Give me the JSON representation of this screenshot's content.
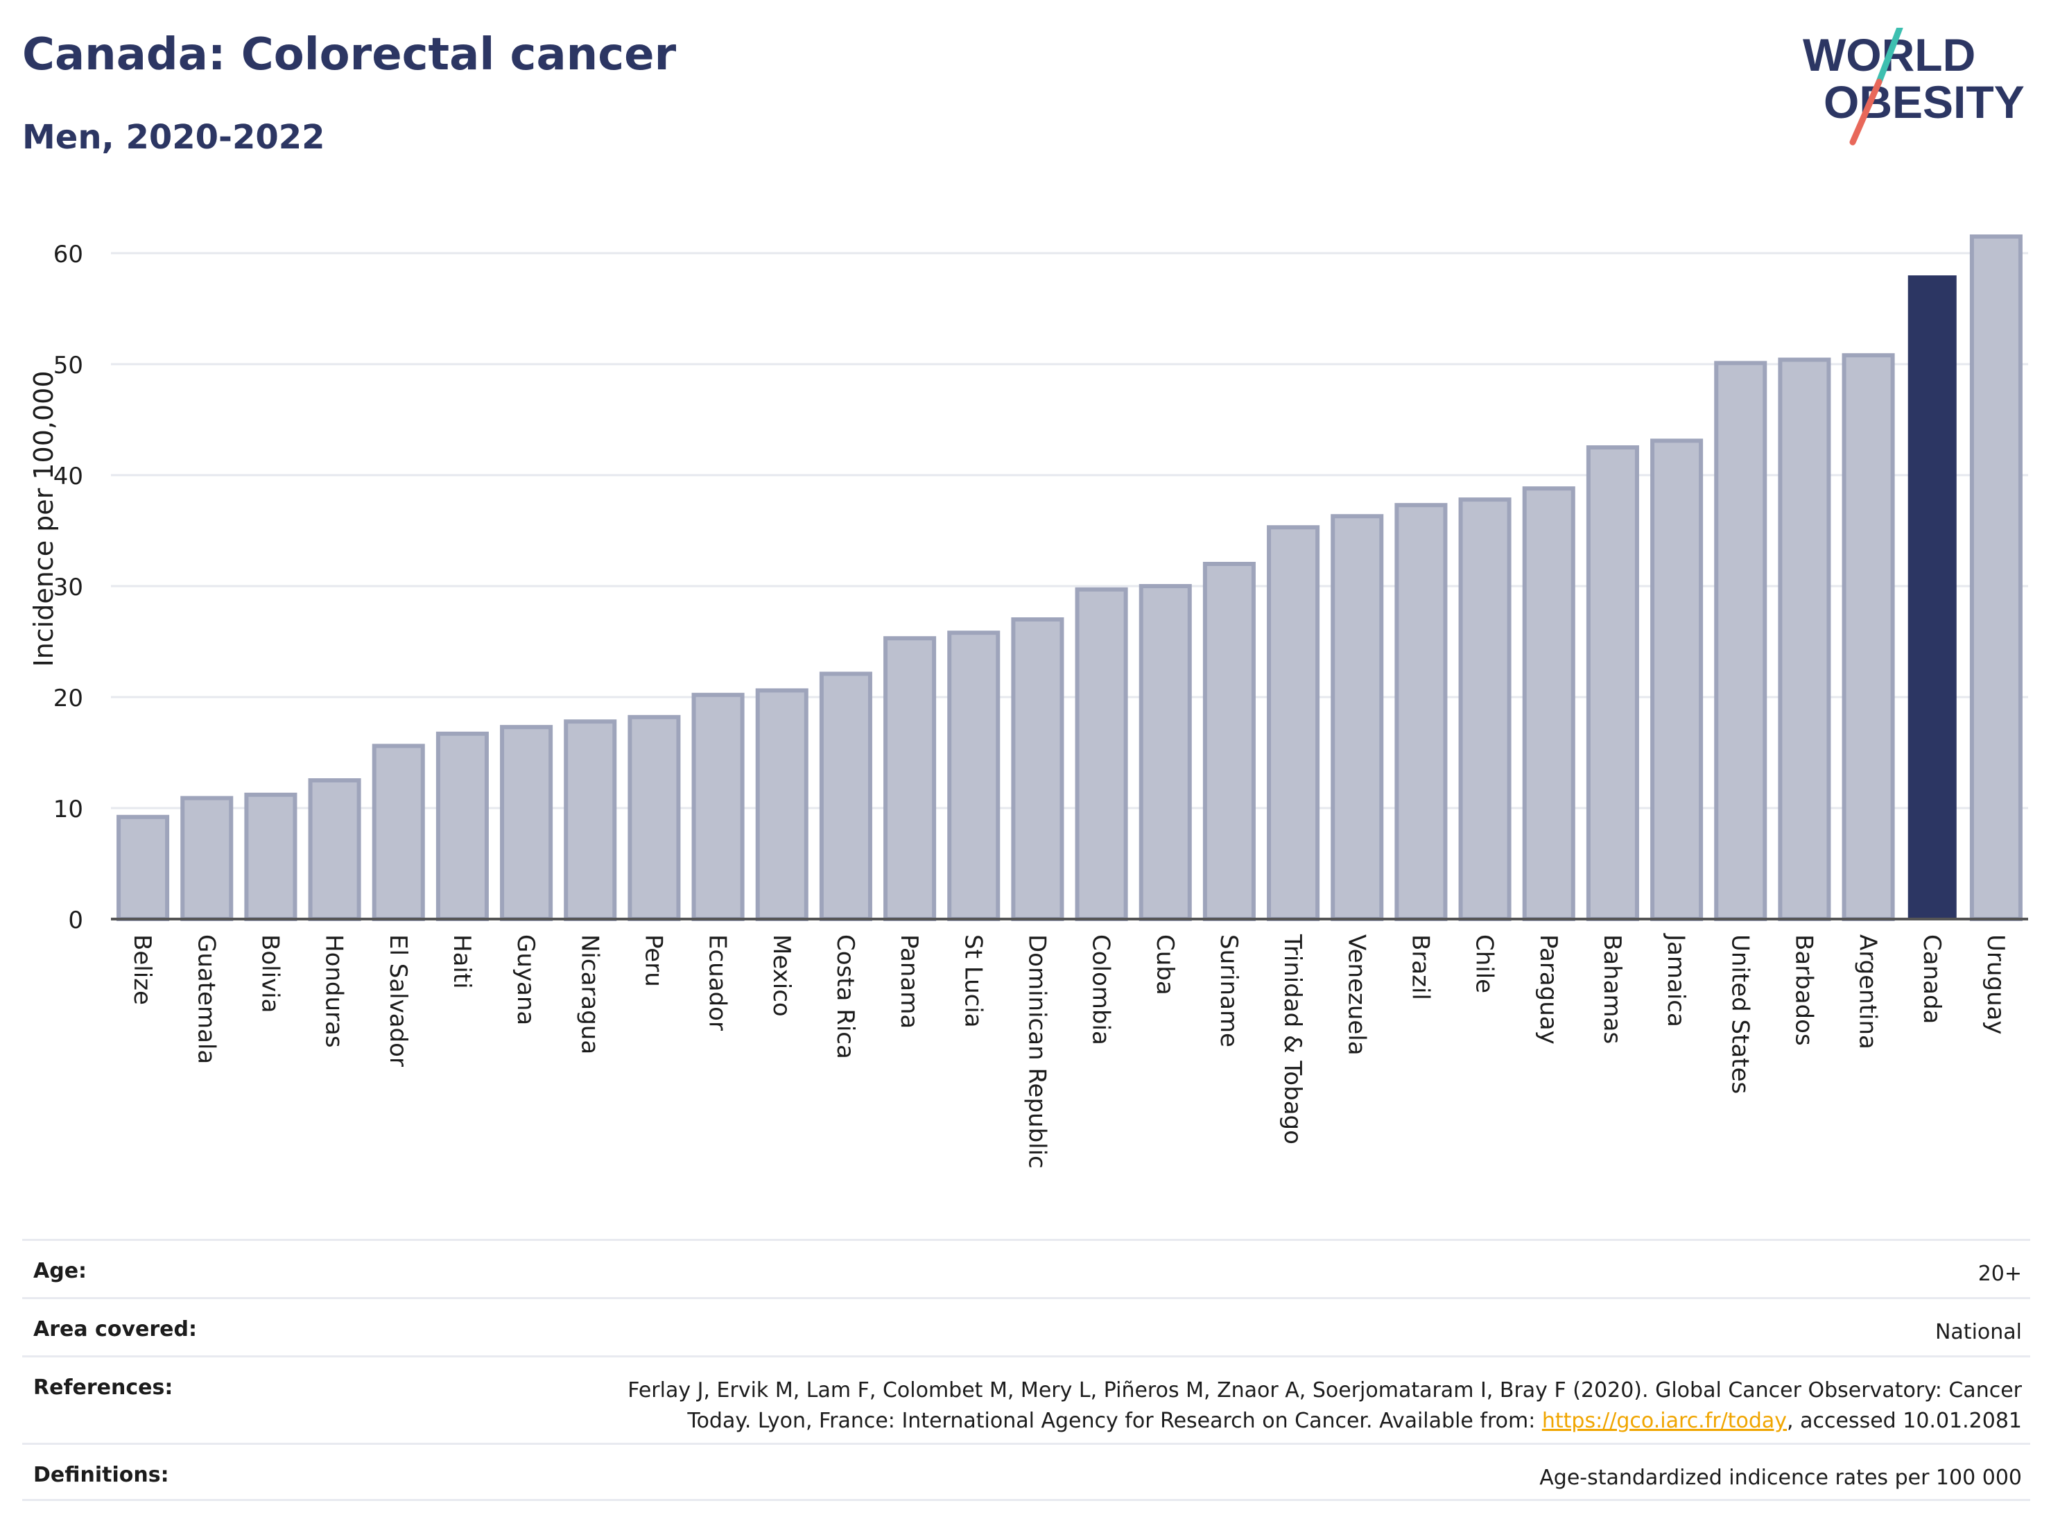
{
  "header": {
    "title": "Canada: Colorectal cancer",
    "subtitle": "Men, 2020-2022"
  },
  "logo": {
    "line1": "WORLD",
    "line2": "OBESITY",
    "text_color": "#2c3663",
    "slash_colors": [
      "#3dbfb0",
      "#e8685a"
    ]
  },
  "chart_data": {
    "type": "bar",
    "ylabel": "Incidence per 100,000",
    "xlabel": "",
    "ylim": [
      0,
      65
    ],
    "yticks": [
      0,
      10,
      20,
      30,
      40,
      50,
      60
    ],
    "grid": true,
    "highlight": "Canada",
    "colors": {
      "bar": "#bcc0cf",
      "bar_edge": "#9ea4bb",
      "highlight": "#2c3663",
      "grid": "#e6e8ee"
    },
    "categories": [
      "Belize",
      "Guatemala",
      "Bolivia",
      "Honduras",
      "El Salvador",
      "Haiti",
      "Guyana",
      "Nicaragua",
      "Peru",
      "Ecuador",
      "Mexico",
      "Costa Rica",
      "Panama",
      "St Lucia",
      "Dominican Republic",
      "Colombia",
      "Cuba",
      "Suriname",
      "Trinidad & Tobago",
      "Venezuela",
      "Brazil",
      "Chile",
      "Paraguay",
      "Bahamas",
      "Jamaica",
      "United States",
      "Barbados",
      "Argentina",
      "Canada",
      "Uruguay"
    ],
    "values": [
      9.2,
      10.9,
      11.2,
      12.5,
      15.6,
      16.7,
      17.3,
      17.8,
      18.2,
      20.2,
      20.6,
      22.1,
      25.3,
      25.8,
      27.0,
      29.7,
      30.0,
      32.0,
      35.3,
      36.3,
      37.3,
      37.8,
      38.8,
      42.5,
      43.1,
      50.1,
      50.4,
      50.8,
      58.0,
      61.5
    ]
  },
  "meta": {
    "age_label": "Age:",
    "age_value": "20+",
    "area_label": "Area covered:",
    "area_value": "National",
    "references_label": "References:",
    "references_line1": "Ferlay J, Ervik M, Lam F, Colombet M, Mery L, Piñeros M, Znaor A, Soerjomataram I, Bray F (2020). Global Cancer Observatory: Cancer",
    "references_line2_pre": "Today. Lyon, France: International Agency for Research on Cancer. Available from: ",
    "references_link": "https://gco.iarc.fr/today",
    "references_line2_post": ", accessed 10.01.2081",
    "definitions_label": "Definitions:",
    "definitions_value": "Age-standardized indicence rates per 100 000"
  }
}
